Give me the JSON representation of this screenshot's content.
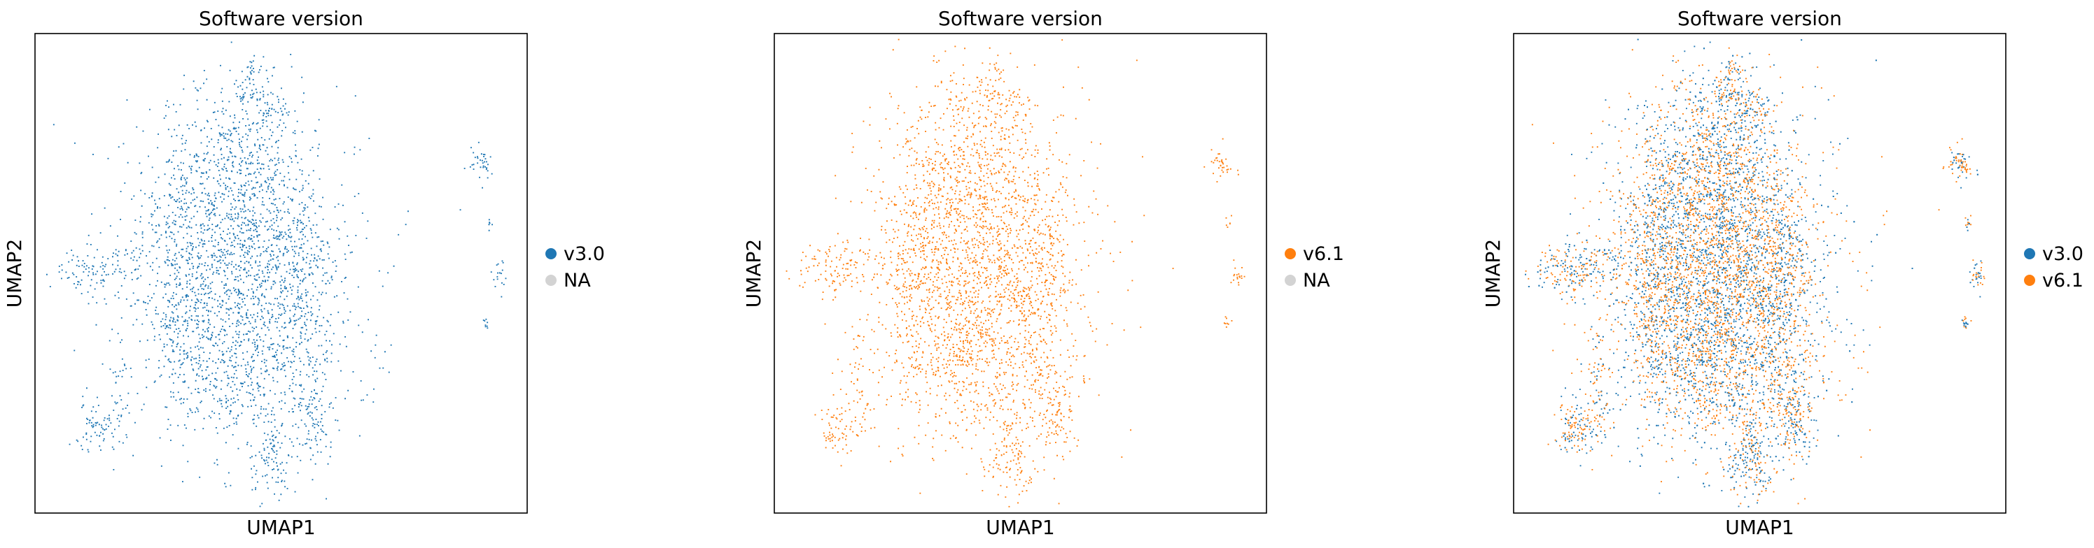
{
  "colors": {
    "v30": "#1f77b4",
    "v61": "#ff7f0e",
    "na": "#d3d3d3",
    "frame": "#000000"
  },
  "chart_data": [
    {
      "type": "scatter",
      "title": "Software version",
      "xlabel": "UMAP1",
      "ylabel": "UMAP2",
      "legend_position": "right-center",
      "grid": false,
      "ticks": "none",
      "series": [
        {
          "name": "v3.0",
          "color": "#1f77b4",
          "mode": "v30"
        },
        {
          "name": "NA",
          "color": "#d3d3d3",
          "mode": "none"
        }
      ]
    },
    {
      "type": "scatter",
      "title": "Software version",
      "xlabel": "UMAP1",
      "ylabel": "UMAP2",
      "legend_position": "right-center",
      "grid": false,
      "ticks": "none",
      "series": [
        {
          "name": "v6.1",
          "color": "#ff7f0e",
          "mode": "v61"
        },
        {
          "name": "NA",
          "color": "#d3d3d3",
          "mode": "none"
        }
      ]
    },
    {
      "type": "scatter",
      "title": "Software version",
      "xlabel": "UMAP1",
      "ylabel": "UMAP2",
      "legend_position": "right-center",
      "grid": false,
      "ticks": "none",
      "series": [
        {
          "name": "v3.0",
          "color": "#1f77b4",
          "mode": "v30"
        },
        {
          "name": "v6.1",
          "color": "#ff7f0e",
          "mode": "v61"
        }
      ]
    }
  ]
}
